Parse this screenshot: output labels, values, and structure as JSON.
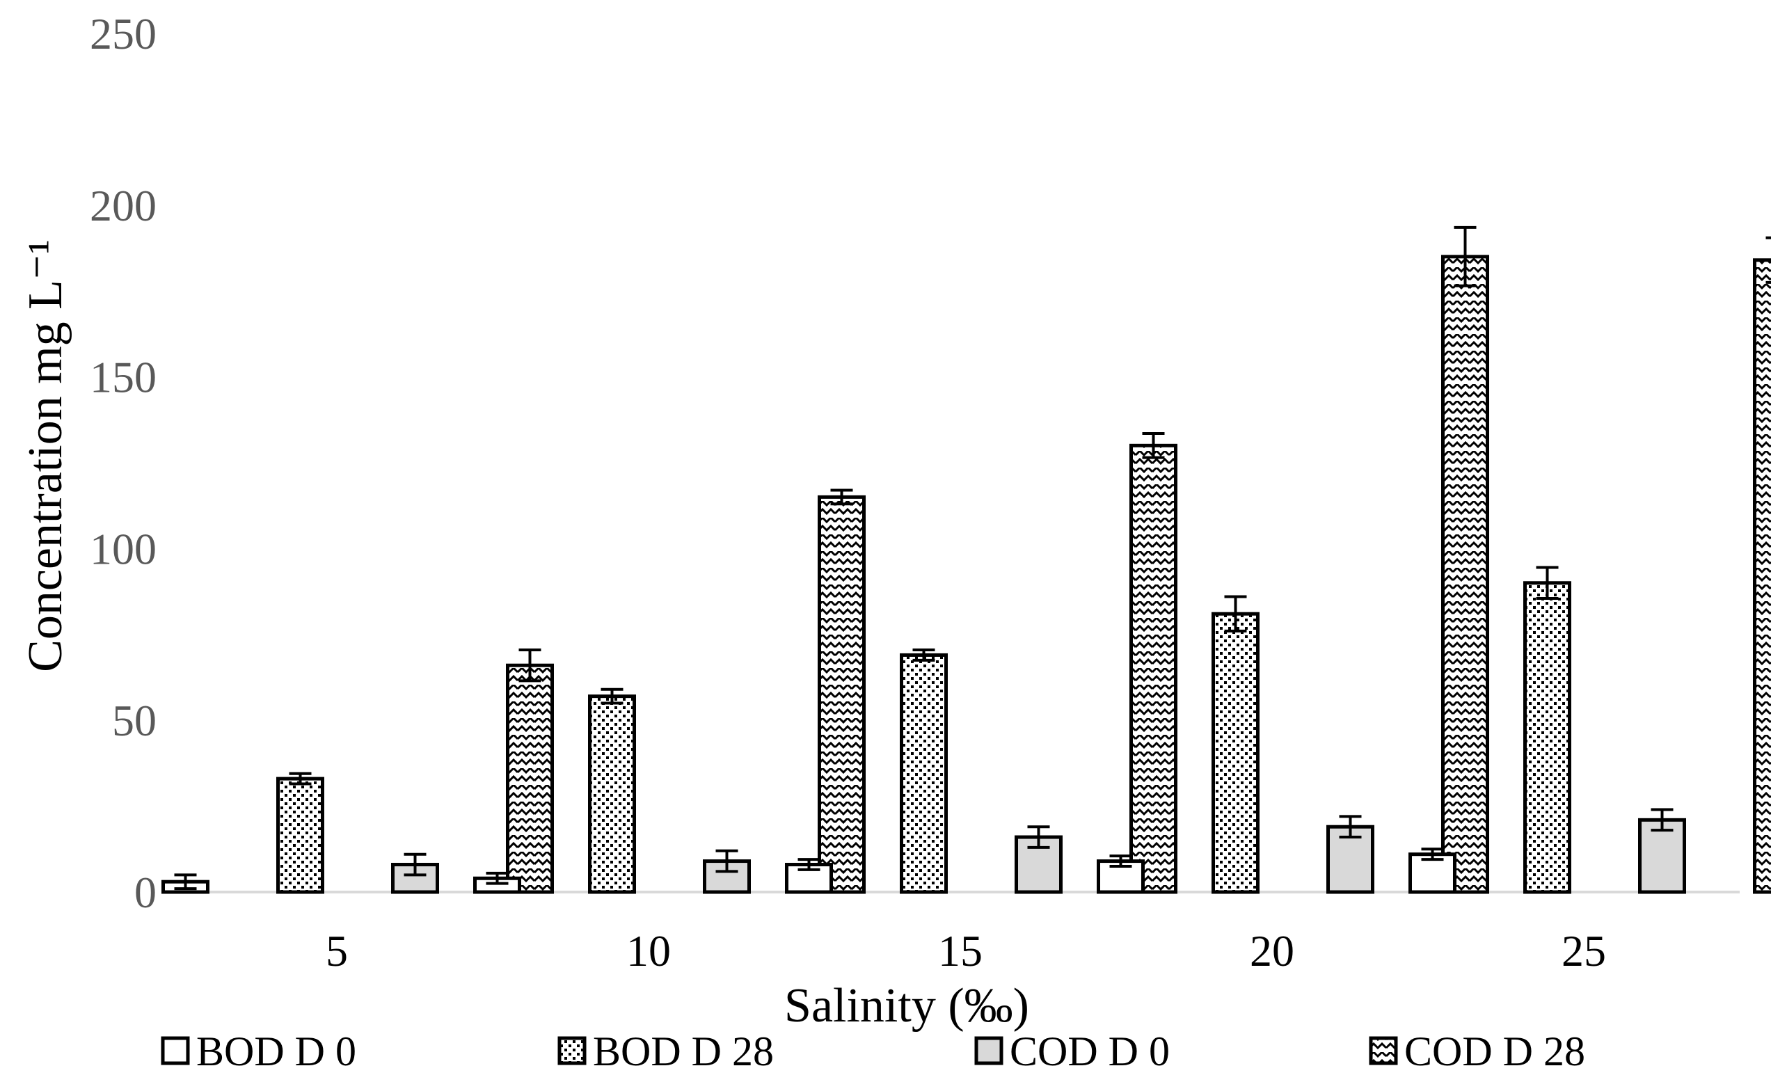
{
  "chart_data": {
    "type": "bar",
    "xlabel": "Salinity (‰)",
    "ylabel": "Concentration mg L⁻¹",
    "categories": [
      "5",
      "10",
      "15",
      "20",
      "25"
    ],
    "ylim": [
      0,
      250
    ],
    "yticks": [
      0,
      50,
      100,
      150,
      200,
      250
    ],
    "grid": false,
    "legend_position": "bottom",
    "error_bars": true,
    "series": [
      {
        "name": "BOD D 0",
        "pattern": "white",
        "values": [
          3,
          4,
          8,
          9,
          11
        ],
        "errors": [
          2,
          1.5,
          1.5,
          1.5,
          1.5
        ]
      },
      {
        "name": "BOD D 28",
        "pattern": "dots",
        "values": [
          33,
          57,
          69,
          81,
          90
        ],
        "errors": [
          1.5,
          2,
          1.5,
          5,
          4.5
        ]
      },
      {
        "name": "COD D 0",
        "pattern": "gray",
        "values": [
          8,
          9,
          16,
          19,
          21
        ],
        "errors": [
          3,
          3,
          3,
          3,
          3
        ]
      },
      {
        "name": "COD D 28",
        "pattern": "zigzag",
        "values": [
          66,
          115,
          130,
          185,
          184
        ],
        "errors": [
          4.5,
          2,
          3.5,
          8.5,
          6.5
        ]
      }
    ]
  }
}
